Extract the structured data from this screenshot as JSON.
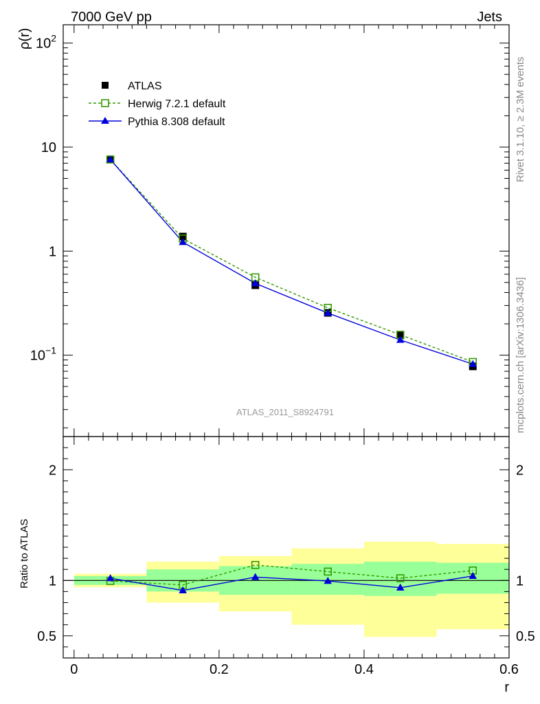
{
  "header": {
    "left": "7000 GeV pp",
    "right": "Jets"
  },
  "side_labels": {
    "rivet": "Rivet 3.1.10, ≥ 2.3M events",
    "mcplots": "mcplots.cern.ch [arXiv:1306.3436]"
  },
  "analysis_label": "ATLAS_2011_S8924791",
  "colors": {
    "atlas": "#000000",
    "herwig": "#339900",
    "pythia": "#0000dd",
    "band_inner": "#99ff99",
    "band_outer": "#ffff99"
  },
  "chart_data": [
    {
      "type": "scatter",
      "ylabel": "ρ(r)",
      "xlabel": "",
      "yscale": "log",
      "xlim": [
        -0.015,
        0.6
      ],
      "ylim": [
        0.0165,
        150
      ],
      "y_ticks": [
        0.1,
        1,
        10,
        100
      ],
      "y_tick_labels": [
        "10^-1",
        "1",
        "10",
        "10^2"
      ],
      "legend_position": "top-left",
      "x": [
        0.05,
        0.15,
        0.25,
        0.35,
        0.45,
        0.55
      ],
      "x_bin_edges": [
        0.0,
        0.1,
        0.2,
        0.3,
        0.4,
        0.5,
        0.6
      ],
      "series": [
        {
          "name": "ATLAS",
          "style": "data",
          "values": [
            7.6,
            1.38,
            0.47,
            0.255,
            0.155,
            0.078
          ]
        },
        {
          "name": "Herwig 7.2.1 default",
          "style": "dashed-open-square",
          "values": [
            7.6,
            1.32,
            0.56,
            0.285,
            0.157,
            0.086
          ]
        },
        {
          "name": "Pythia 8.308 default",
          "style": "solid-triangle",
          "values": [
            7.6,
            1.22,
            0.49,
            0.254,
            0.14,
            0.082
          ]
        }
      ]
    },
    {
      "type": "line",
      "ylabel": "Ratio to ATLAS",
      "xlabel": "r",
      "xlim": [
        -0.015,
        0.6
      ],
      "ylim": [
        0.3,
        2.3
      ],
      "x_ticks": [
        0,
        0.2,
        0.4,
        0.6
      ],
      "x_tick_labels": [
        "0",
        "0.2",
        "0.4",
        "0.6"
      ],
      "y_ticks": [
        0.5,
        1,
        2
      ],
      "y_tick_labels": [
        "0.5",
        "1",
        "2"
      ],
      "x": [
        0.05,
        0.15,
        0.25,
        0.35,
        0.45,
        0.55
      ],
      "x_bin_edges": [
        0.0,
        0.1,
        0.2,
        0.3,
        0.4,
        0.5,
        0.6
      ],
      "bands": {
        "inner_low": [
          0.96,
          0.9,
          0.87,
          0.87,
          0.86,
          0.88
        ],
        "inner_high": [
          1.04,
          1.1,
          1.13,
          1.15,
          1.17,
          1.16
        ],
        "outer_low": [
          0.94,
          0.8,
          0.72,
          0.6,
          0.49,
          0.56
        ],
        "outer_high": [
          1.06,
          1.17,
          1.22,
          1.29,
          1.35,
          1.33
        ]
      },
      "series": [
        {
          "name": "Herwig 7.2.1 default",
          "style": "dashed-open-square",
          "values": [
            0.995,
            0.96,
            1.14,
            1.08,
            1.02,
            1.09
          ]
        },
        {
          "name": "Pythia 8.308 default",
          "style": "solid-triangle",
          "values": [
            1.02,
            0.91,
            1.03,
            0.995,
            0.935,
            1.04
          ]
        }
      ]
    }
  ]
}
